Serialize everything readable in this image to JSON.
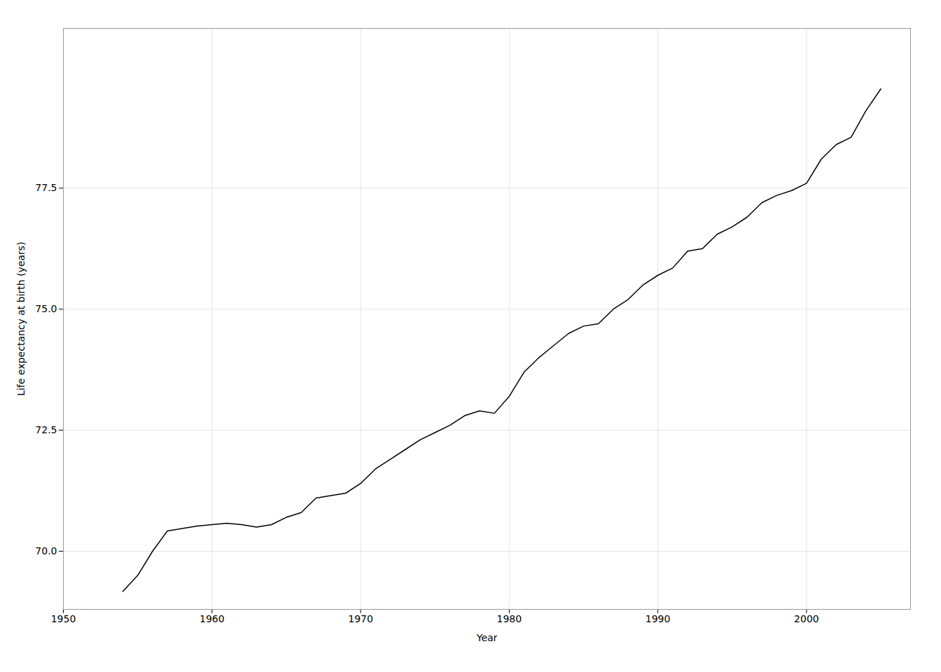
{
  "chart_data": {
    "type": "line",
    "xlabel": "Year",
    "ylabel": "Life expectancy at birth (years)",
    "color": "#000000",
    "grid": true,
    "xlim": [
      1950,
      2007
    ],
    "ylim": [
      68.8,
      80.8
    ],
    "xticks": [
      1950,
      1960,
      1970,
      1980,
      1990,
      2000
    ],
    "yticks": [
      {
        "value": 70.0,
        "label": "70.0"
      },
      72.5,
      {
        "value": 75.0,
        "label": "75.0"
      },
      77.5
    ],
    "x": [
      1954,
      1955,
      1956,
      1957,
      1958,
      1959,
      1960,
      1961,
      1962,
      1963,
      1964,
      1965,
      1966,
      1967,
      1968,
      1969,
      1970,
      1971,
      1972,
      1973,
      1974,
      1975,
      1976,
      1977,
      1978,
      1979,
      1980,
      1981,
      1982,
      1983,
      1984,
      1985,
      1986,
      1987,
      1988,
      1989,
      1990,
      1991,
      1992,
      1993,
      1994,
      1995,
      1996,
      1997,
      1998,
      1999,
      2000,
      2001,
      2002,
      2003,
      2004,
      2005
    ],
    "values": [
      69.17,
      69.5,
      70.0,
      70.42,
      70.47,
      70.52,
      70.55,
      70.58,
      70.55,
      70.5,
      70.55,
      70.7,
      70.8,
      71.1,
      71.15,
      71.2,
      71.4,
      71.7,
      71.9,
      72.1,
      72.3,
      72.45,
      72.6,
      72.8,
      72.9,
      72.85,
      73.2,
      73.7,
      74.0,
      74.25,
      74.5,
      74.65,
      74.7,
      75.0,
      75.2,
      75.5,
      75.7,
      75.85,
      76.2,
      76.25,
      76.55,
      76.7,
      76.9,
      77.2,
      77.35,
      77.45,
      77.6,
      78.1,
      78.4,
      78.55,
      79.1,
      79.55
    ]
  }
}
